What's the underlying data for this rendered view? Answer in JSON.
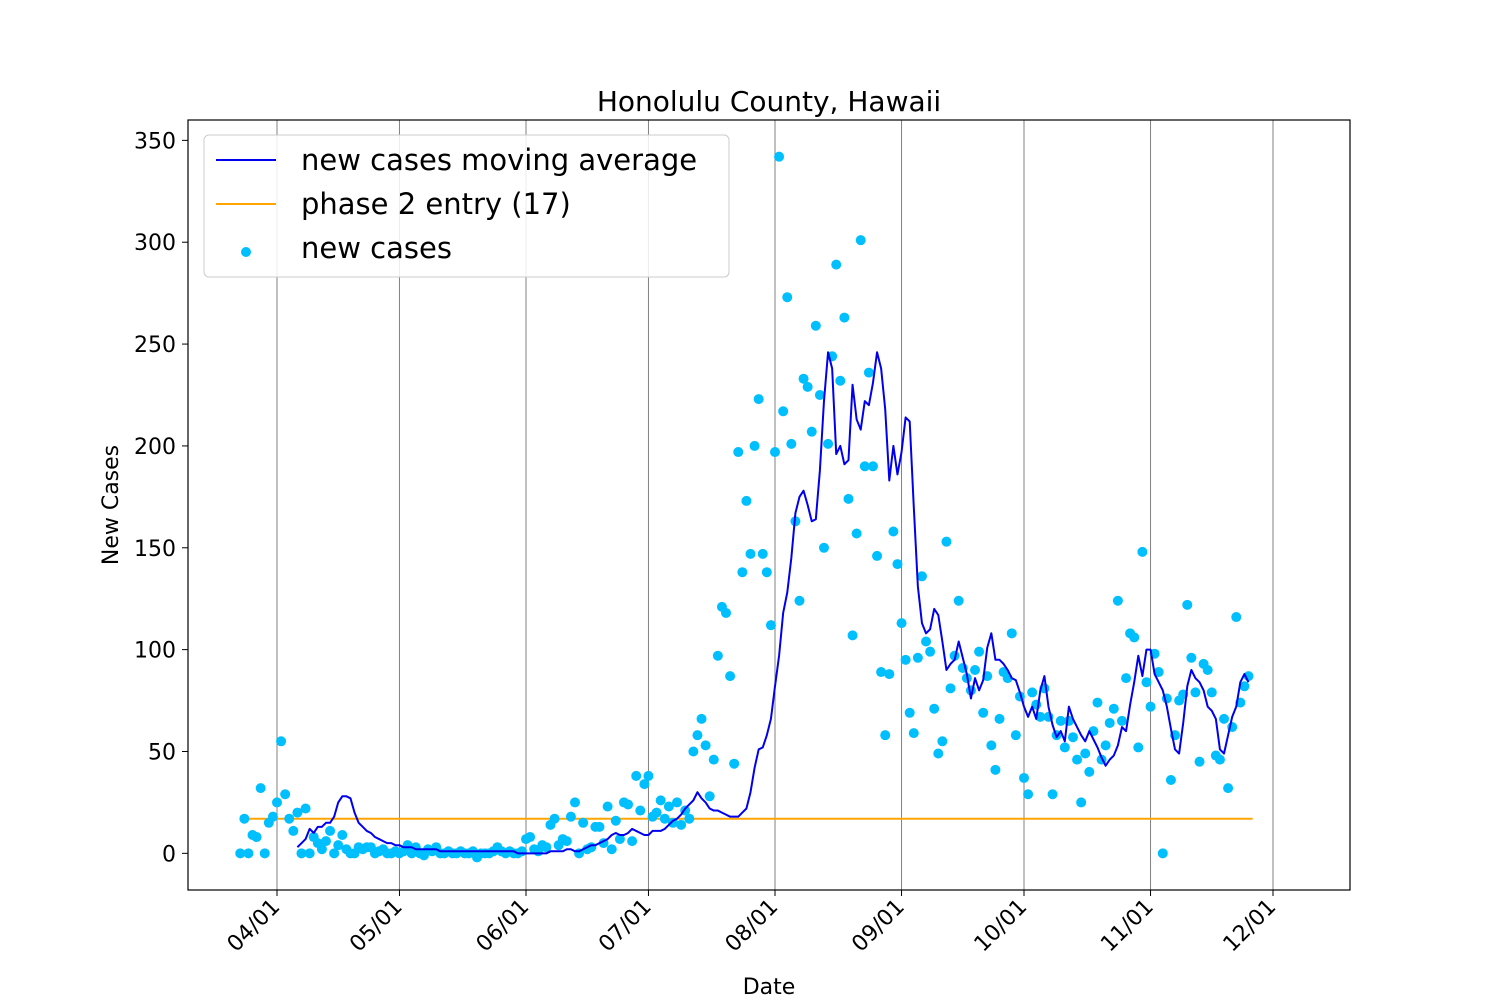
{
  "chart_data": {
    "type": "scatter+line",
    "title": "Honolulu County, Hawaii",
    "xlabel": "Date",
    "ylabel": "New Cases",
    "x_start_date": "03/23",
    "x_ticks": [
      "04/01",
      "05/01",
      "06/01",
      "07/01",
      "08/01",
      "09/01",
      "10/01",
      "11/01",
      "12/01"
    ],
    "ylim": [
      -18,
      360
    ],
    "y_ticks": [
      0,
      50,
      100,
      150,
      200,
      250,
      300,
      350
    ],
    "grid": "vertical lines at x ticks",
    "legend_position": "top-left",
    "legend": {
      "moving_average": "new cases moving average",
      "threshold": "phase 2 entry (17)",
      "scatter": "new cases"
    },
    "threshold_value": 17,
    "colors": {
      "moving_average": "#0000ee",
      "threshold": "#ffa500",
      "scatter": "#00bfff",
      "grid": "#808080"
    },
    "series": [
      {
        "name": "new cases",
        "values": [
          0,
          17,
          0,
          9,
          8,
          32,
          0,
          15,
          18,
          25,
          55,
          29,
          17,
          11,
          20,
          0,
          22,
          0,
          8,
          5,
          2,
          6,
          11,
          0,
          4,
          9,
          2,
          0,
          0,
          3,
          2,
          3,
          3,
          0,
          1,
          2,
          0,
          0,
          1,
          0,
          1,
          4,
          0,
          3,
          0,
          -1,
          2,
          1,
          3,
          0,
          0,
          1,
          0,
          0,
          1,
          0,
          0,
          1,
          -2,
          0,
          0,
          0,
          1,
          3,
          1,
          0,
          1,
          0,
          0,
          1,
          7,
          8,
          2,
          1,
          4,
          3,
          14,
          17,
          4,
          7,
          6,
          18,
          25,
          0,
          15,
          2,
          3,
          13,
          13,
          5,
          23,
          2,
          16,
          7,
          25,
          24,
          6,
          38,
          21,
          34,
          38,
          18,
          20,
          26,
          17,
          23,
          15,
          25,
          14,
          21,
          17,
          50,
          58,
          66,
          53,
          28,
          46,
          97,
          121,
          118,
          87,
          44,
          197,
          138,
          173,
          147,
          200,
          223,
          147,
          138,
          112,
          197,
          342,
          217,
          273,
          201,
          163,
          124,
          233,
          229,
          207,
          259,
          225,
          150,
          201,
          244,
          289,
          232,
          263,
          174,
          107,
          157,
          301,
          190,
          236,
          190,
          146,
          89,
          58,
          88,
          158,
          142,
          113,
          95,
          69,
          59,
          96,
          136,
          104,
          99,
          71,
          49,
          55,
          153,
          81,
          97,
          124,
          91,
          86,
          80,
          90,
          99,
          69,
          87,
          53,
          41,
          66,
          89,
          86,
          108,
          58,
          77,
          37,
          29,
          79,
          73,
          67,
          81,
          67,
          29,
          58,
          65,
          52,
          65,
          57,
          46,
          25,
          49,
          40,
          60,
          74,
          46,
          53,
          64,
          71,
          124,
          65,
          86,
          108,
          106,
          52,
          148,
          84,
          72,
          98,
          89,
          0,
          76,
          36,
          58,
          75,
          78,
          122,
          96,
          79,
          45,
          93,
          90,
          79,
          48,
          46,
          66,
          32,
          62,
          116,
          74,
          82,
          87
        ]
      },
      {
        "name": "new cases moving average",
        "values": [
          3,
          5,
          7,
          12,
          10,
          13,
          13,
          15,
          15,
          18,
          25,
          28,
          28,
          27,
          20,
          15,
          13,
          11,
          10,
          8,
          7,
          6,
          5,
          5,
          4,
          4,
          3,
          3,
          3,
          2,
          2,
          2,
          2,
          2,
          2,
          1,
          1,
          1,
          1,
          1,
          1,
          1,
          1,
          1,
          1,
          1,
          1,
          1,
          1,
          1,
          1,
          1,
          1,
          1,
          0,
          0,
          0,
          0,
          0,
          0,
          0,
          0,
          1,
          1,
          1,
          1,
          2,
          2,
          1,
          1,
          2,
          3,
          4,
          4,
          5,
          6,
          7,
          9,
          10,
          9,
          9,
          10,
          12,
          11,
          10,
          9,
          9,
          11,
          11,
          11,
          12,
          14,
          16,
          17,
          19,
          22,
          24,
          26,
          30,
          27,
          25,
          22,
          21,
          21,
          20,
          19,
          18,
          18,
          18,
          20,
          22,
          30,
          42,
          51,
          52,
          58,
          66,
          82,
          97,
          118,
          128,
          145,
          167,
          175,
          178,
          171,
          163,
          164,
          188,
          222,
          246,
          238,
          196,
          200,
          191,
          193,
          230,
          213,
          208,
          222,
          220,
          231,
          246,
          238,
          218,
          183,
          200,
          186,
          197,
          214,
          212,
          170,
          131,
          113,
          108,
          110,
          120,
          117,
          104,
          90,
          93,
          95,
          104,
          96,
          88,
          76,
          86,
          80,
          85,
          101,
          108,
          95,
          95,
          93,
          90,
          86,
          85,
          79,
          72,
          67,
          72,
          66,
          80,
          87,
          72,
          63,
          57,
          60,
          55,
          72,
          66,
          62,
          58,
          55,
          60,
          56,
          52,
          47,
          43,
          46,
          48,
          53,
          62,
          60,
          73,
          84,
          97,
          87,
          100,
          100,
          88,
          84,
          80,
          72,
          61,
          51,
          49,
          64,
          82,
          90,
          86,
          84,
          80,
          72,
          70,
          66,
          51,
          49,
          58,
          67,
          72,
          84,
          88,
          84
        ]
      }
    ]
  }
}
